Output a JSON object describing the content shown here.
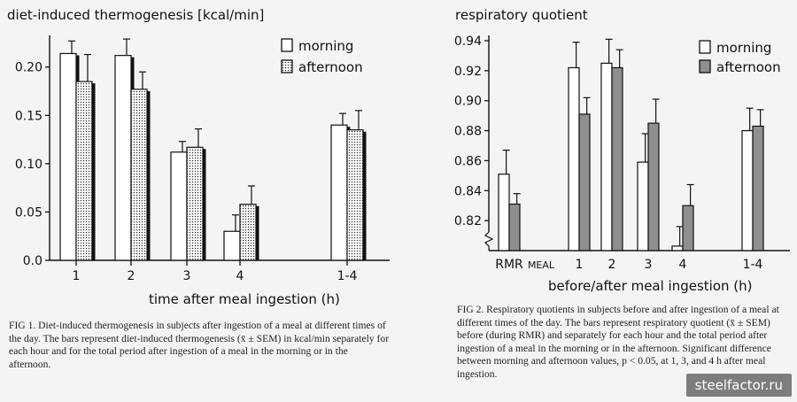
{
  "chart_data": [
    {
      "type": "bar",
      "title": "diet-induced thermogenesis [kcal/min]",
      "xlabel": "time after meal ingestion (h)",
      "ylabel": "",
      "categories": [
        "1",
        "2",
        "3",
        "4",
        "1-4"
      ],
      "ylim": [
        0,
        0.23
      ],
      "yticks": [
        "0.0",
        "0.05",
        "0.10",
        "0.15",
        "0.20"
      ],
      "grid": false,
      "legend_position": "top-right",
      "series": [
        {
          "name": "morning",
          "values": [
            0.214,
            0.212,
            0.112,
            0.03,
            0.14
          ],
          "errors": [
            0.013,
            0.017,
            0.011,
            0.017,
            0.012
          ],
          "pattern": "white"
        },
        {
          "name": "afternoon",
          "values": [
            0.185,
            0.177,
            0.117,
            0.058,
            0.135
          ],
          "errors": [
            0.028,
            0.018,
            0.019,
            0.019,
            0.02
          ],
          "pattern": "dotted"
        }
      ]
    },
    {
      "type": "bar",
      "title": "respiratory quotient",
      "xlabel": "before/after meal ingestion (h)",
      "ylabel": "",
      "categories": [
        "RMR",
        "MEAL",
        "1",
        "2",
        "3",
        "4",
        "1-4"
      ],
      "ylim": [
        0.8,
        0.94
      ],
      "yticks": [
        "0.82",
        "0.84",
        "0.86",
        "0.88",
        "0.90",
        "0.92",
        "0.94"
      ],
      "grid": false,
      "legend_position": "top-right",
      "series": [
        {
          "name": "morning",
          "values": [
            0.851,
            null,
            0.922,
            0.925,
            0.859,
            0.803,
            0.88
          ],
          "errors": [
            0.016,
            null,
            0.017,
            0.016,
            0.019,
            0.013,
            0.015
          ],
          "pattern": "white"
        },
        {
          "name": "afternoon",
          "values": [
            0.831,
            null,
            0.891,
            0.922,
            0.885,
            0.83,
            0.883
          ],
          "errors": [
            0.007,
            null,
            0.011,
            0.012,
            0.016,
            0.014,
            0.011
          ],
          "pattern": "gray"
        }
      ]
    }
  ],
  "captions": {
    "fig1": "FIG 1. Diet-induced thermogenesis in subjects after ingestion of a meal at different times of the day. The bars represent diet-induced thermogenesis (x̄ ± SEM) in kcal/min separately for each hour and for the total period after ingestion of a meal in the morning or in the afternoon.",
    "fig2": "FIG 2. Respiratory quotients in subjects before and after ingestion of a meal at different times of the day. The bars represent respiratory quotient (x̄ ± SEM) before (during RMR) and separately for each hour and the total period after ingestion of a meal in the morning or in the afternoon. Significant difference between morning and afternoon values, p < 0.05, at 1, 3, and 4 h after meal ingestion."
  },
  "watermark": "steelfactor.ru",
  "colors": {
    "ink": "#111111",
    "gray_fill": "#8f8f8f",
    "paper": "#f4f4f2"
  }
}
